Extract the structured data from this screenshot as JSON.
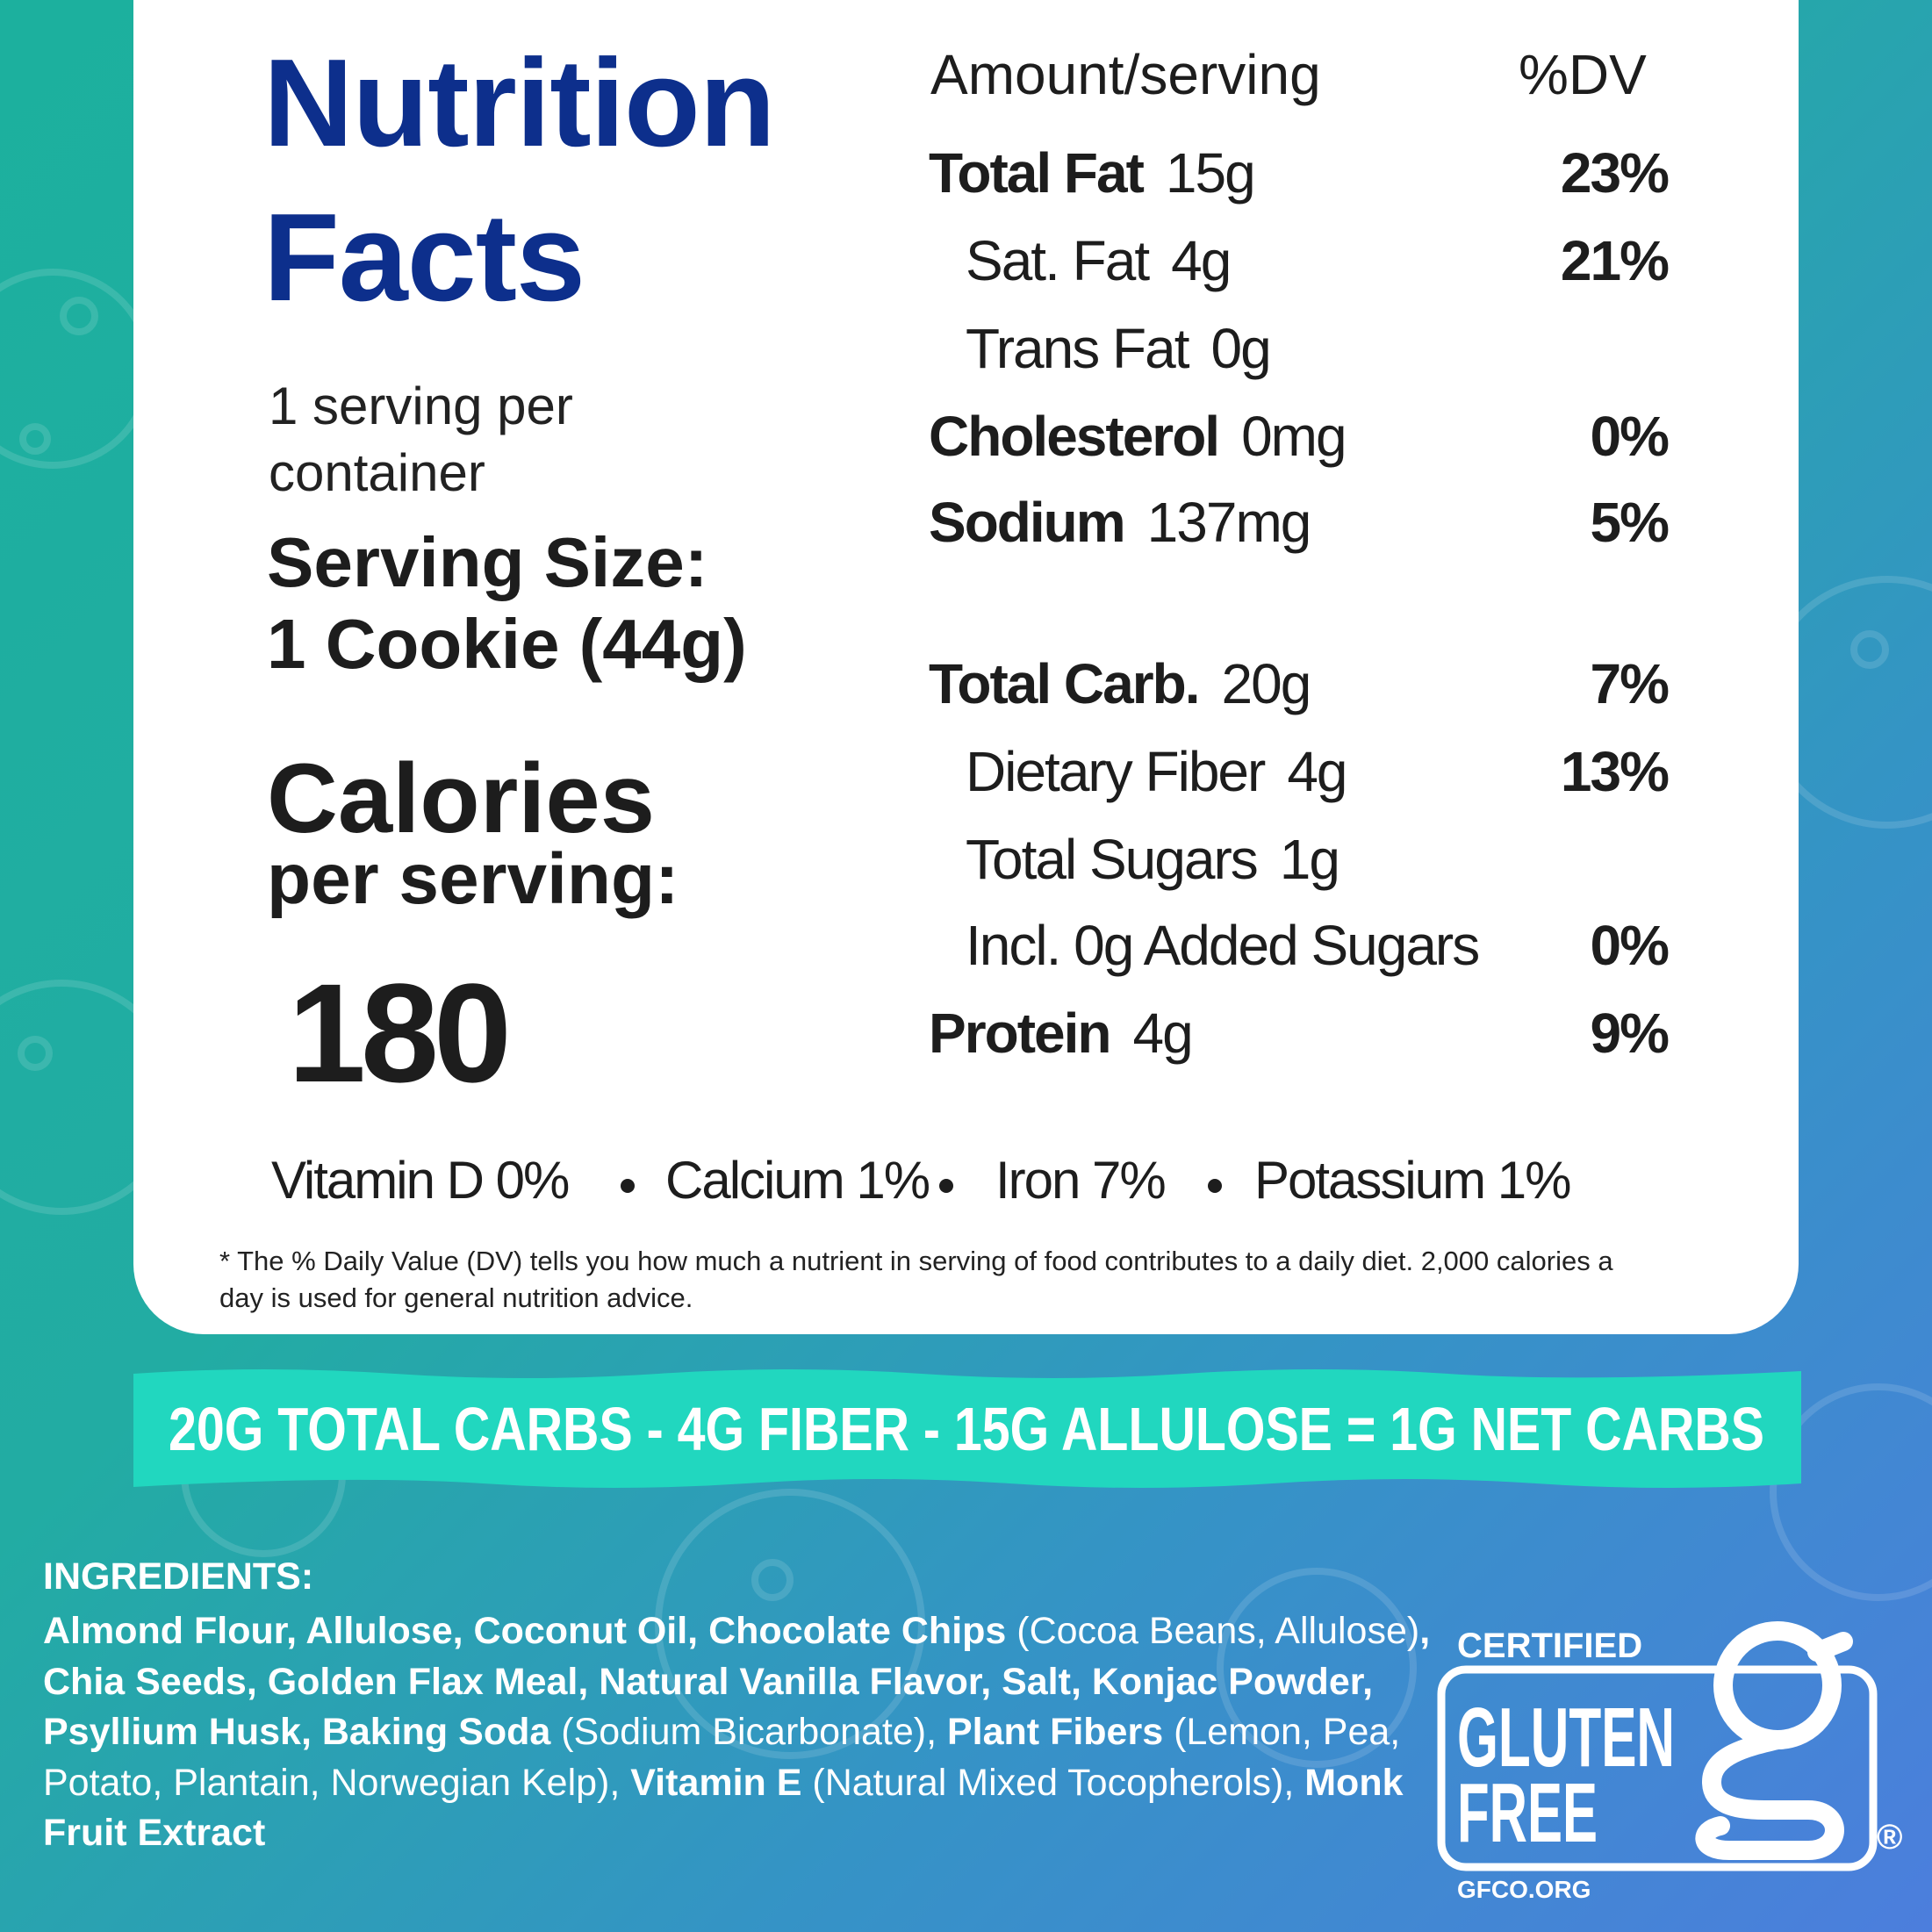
{
  "label": {
    "title": "Nutrition Facts",
    "servings": "1 serving per container",
    "serving_size_label": "Serving Size:",
    "serving_size": "1 Cookie (44g)",
    "calories_label": "Calories",
    "calories_sublabel": "per serving:",
    "calories": 180,
    "header": {
      "amount": "Amount/serving",
      "dv": "%DV"
    },
    "rows": [
      {
        "name": "Total Fat",
        "amount": "15g",
        "dv": "23%",
        "bold": true,
        "indent": false
      },
      {
        "name": "Sat. Fat",
        "amount": "4g",
        "dv": "21%",
        "bold": false,
        "indent": true
      },
      {
        "name": "Trans Fat",
        "amount": "0g",
        "bold": false,
        "indent": true
      },
      {
        "name": "Cholesterol",
        "amount": "0mg",
        "dv": "0%",
        "bold": true,
        "indent": false
      },
      {
        "name": "Sodium",
        "amount": "137mg",
        "dv": "5%",
        "bold": true,
        "indent": false
      },
      {
        "name": "Total Carb.",
        "amount": "20g",
        "dv": "7%",
        "bold": true,
        "indent": false
      },
      {
        "name": "Dietary Fiber",
        "amount": "4g",
        "dv": "13%",
        "bold": false,
        "indent": true
      },
      {
        "name": "Total Sugars",
        "amount": "1g",
        "bold": false,
        "indent": true
      },
      {
        "name": "Incl. 0g Added Sugars",
        "dv": "0%",
        "bold": false,
        "indent": true
      },
      {
        "name": "Protein",
        "amount": "4g",
        "dv": "9%",
        "bold": true,
        "indent": false
      }
    ],
    "vitamins": [
      "Vitamin D 0%",
      "Calcium 1%",
      "Iron 7%",
      "Potassium 1%"
    ],
    "footnote": "* The % Daily Value (DV) tells you how much a nutrient in serving of food contributes to a daily diet. 2,000 calories a day is used for general nutrition advice."
  },
  "banner": "20G  TOTAL CARBS  -  4G FIBER -  15G ALLULOSE = 1G NET CARBS",
  "ingredients": {
    "title": "INGREDIENTS:",
    "segments": [
      {
        "text": "Almond Flour, Allulose, Coconut Oil, Chocolate Chips",
        "bold": true
      },
      {
        "text": " (Cocoa Beans, Allulose)",
        "bold": false
      },
      {
        "text": ", Chia Seeds, Golden Flax Meal, Natural Vanilla Flavor, Salt, Konjac Powder, Psyllium Husk, Baking Soda",
        "bold": true
      },
      {
        "text": " (Sodium Bicarbonate), ",
        "bold": false
      },
      {
        "text": "Plant Fibers",
        "bold": true
      },
      {
        "text": " (Lemon, Pea, Potato, Plantain, Norwegian Kelp), ",
        "bold": false
      },
      {
        "text": "Vitamin E",
        "bold": true
      },
      {
        "text": " (Natural Mixed Tocopherols), ",
        "bold": false
      },
      {
        "text": "Monk Fruit Extract",
        "bold": true
      }
    ]
  },
  "badge": {
    "top": "CERTIFIED",
    "line1": "GLUTEN",
    "line2": "FREE",
    "mark": "®",
    "url": "GFCO.ORG"
  }
}
